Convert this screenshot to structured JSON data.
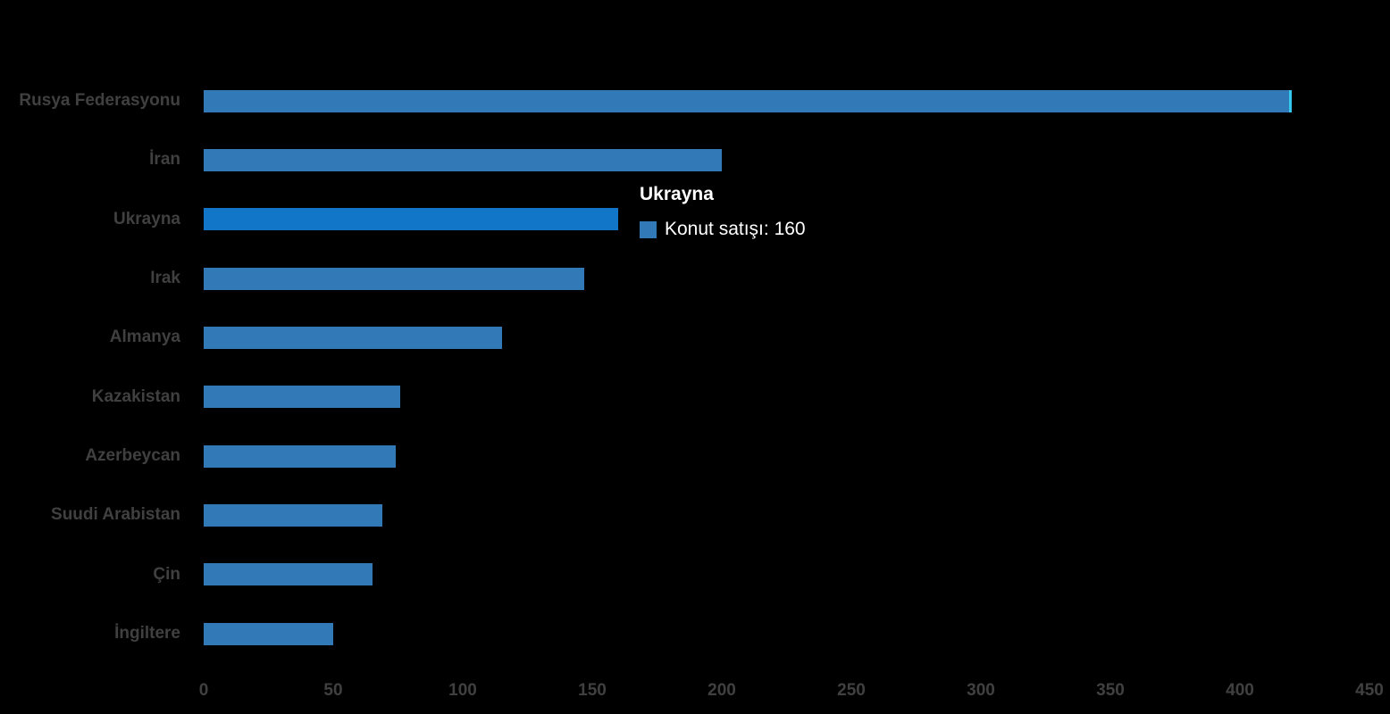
{
  "colors": {
    "background": "#000000",
    "bar": "#3279B7",
    "bar_highlight": "#1176C8",
    "bar_edge": "#35C8EE",
    "category_label": "#404040",
    "axis_label": "#404040",
    "tooltip_text": "#FFFFFF"
  },
  "chart_data": {
    "type": "bar",
    "orientation": "horizontal",
    "series_name": "Konut satışı",
    "categories": [
      "Rusya Federasyonu",
      "İran",
      "Ukrayna",
      "Irak",
      "Almanya",
      "Kazakistan",
      "Azerbeycan",
      "Suudi Arabistan",
      "Çin",
      "İngiltere"
    ],
    "values": [
      420,
      200,
      160,
      147,
      115,
      76,
      74,
      69,
      65,
      50
    ],
    "xlim": [
      0,
      450
    ],
    "x_ticks": [
      0,
      50,
      100,
      150,
      200,
      250,
      300,
      350,
      400,
      450
    ],
    "highlighted_category": "Ukrayna",
    "highlighted_index": 2,
    "edge_bar_index": 0,
    "title": "",
    "xlabel": "",
    "ylabel": "",
    "grid": false,
    "legend": false
  },
  "tooltip": {
    "title": "Ukrayna",
    "text": "Konut satışı: 160"
  }
}
